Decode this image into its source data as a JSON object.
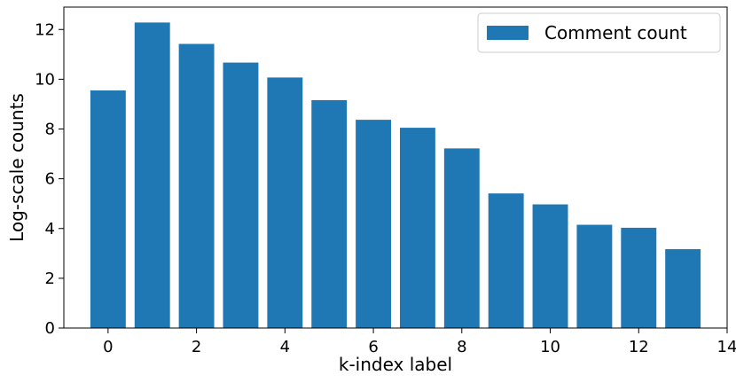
{
  "chart_data": {
    "type": "bar",
    "x": [
      0,
      1,
      2,
      3,
      4,
      5,
      6,
      7,
      8,
      9,
      10,
      11,
      12,
      13
    ],
    "series": [
      {
        "name": "Comment count",
        "color": "#1f77b4",
        "values": [
          9.55,
          12.28,
          11.42,
          10.67,
          10.07,
          9.16,
          8.37,
          8.05,
          7.22,
          5.41,
          4.97,
          4.15,
          4.03,
          3.17
        ]
      }
    ],
    "bar_width": 0.8,
    "xlabel": "k-index label",
    "ylabel": "Log-scale counts",
    "xlim": [
      -1,
      14
    ],
    "ylim": [
      0,
      12.9
    ],
    "xticks": [
      0,
      2,
      4,
      6,
      8,
      10,
      12,
      14
    ],
    "yticks": [
      0,
      2,
      4,
      6,
      8,
      10,
      12
    ],
    "grid": false,
    "legend": {
      "position": "top-right"
    }
  }
}
